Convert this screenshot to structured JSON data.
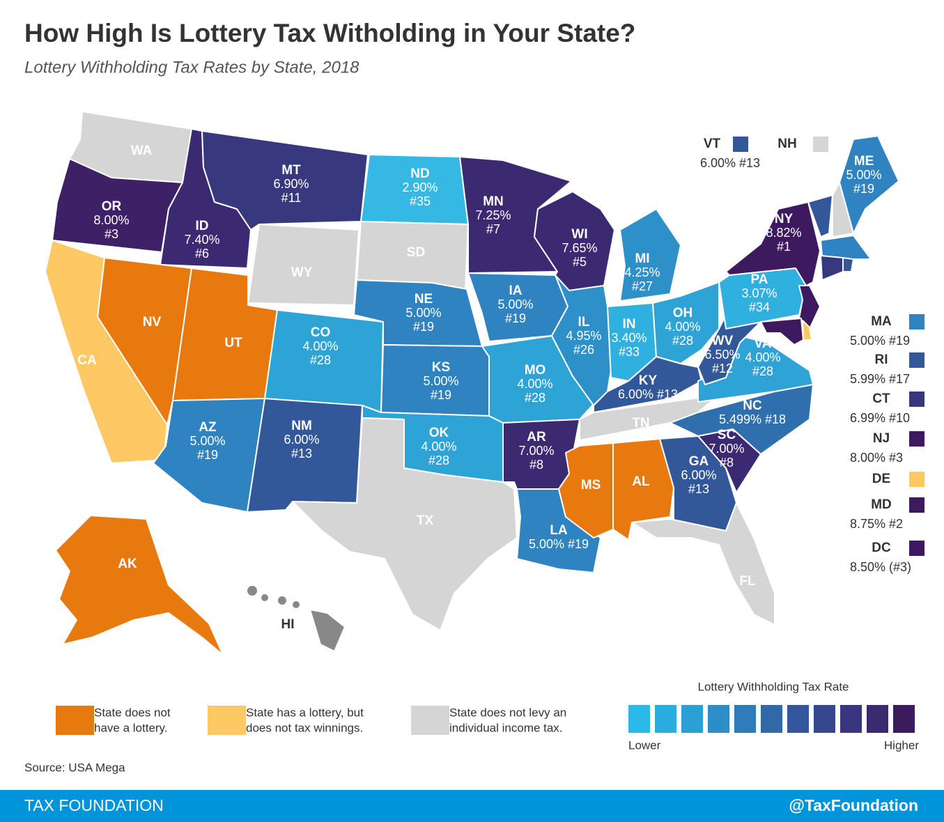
{
  "header": {
    "title": "How High Is Lottery Tax Witholding in Your State?",
    "subtitle": "Lottery Withholding Tax Rates by State, 2018"
  },
  "states": [
    {
      "abbr": "WA",
      "color": "#d5d5d5"
    },
    {
      "abbr": "OR",
      "lines": [
        "8.00%",
        "#3"
      ],
      "color": "#3d2066"
    },
    {
      "abbr": "ID",
      "lines": [
        "7.40%",
        "#6"
      ],
      "color": "#3b2a72"
    },
    {
      "abbr": "MT",
      "lines": [
        "6.90%",
        "#11"
      ],
      "color": "#38387f"
    },
    {
      "abbr": "WY",
      "color": "#d5d5d5"
    },
    {
      "abbr": "NV",
      "color": "#e8790f"
    },
    {
      "abbr": "CA",
      "color": "#fec965"
    },
    {
      "abbr": "UT",
      "color": "#e8790f"
    },
    {
      "abbr": "AZ",
      "lines": [
        "5.00%",
        "#19"
      ],
      "color": "#2e83c0"
    },
    {
      "abbr": "CO",
      "lines": [
        "4.00%",
        "#28"
      ],
      "color": "#2ea4d6"
    },
    {
      "abbr": "NM",
      "lines": [
        "6.00%",
        "#13"
      ],
      "color": "#33589a"
    },
    {
      "abbr": "ND",
      "lines": [
        "2.90%",
        "#35"
      ],
      "color": "#35b8e3"
    },
    {
      "abbr": "SD",
      "color": "#d5d5d5"
    },
    {
      "abbr": "NE",
      "lines": [
        "5.00%",
        "#19"
      ],
      "color": "#2e83c0"
    },
    {
      "abbr": "KS",
      "lines": [
        "5.00%",
        "#19"
      ],
      "color": "#2e83c0"
    },
    {
      "abbr": "OK",
      "lines": [
        "4.00%",
        "#28"
      ],
      "color": "#2ea4d6"
    },
    {
      "abbr": "TX",
      "color": "#d5d5d5"
    },
    {
      "abbr": "MN",
      "lines": [
        "7.25%",
        "#7"
      ],
      "color": "#3b2a72"
    },
    {
      "abbr": "IA",
      "lines": [
        "5.00%",
        "#19"
      ],
      "color": "#2e83c0"
    },
    {
      "abbr": "MO",
      "lines": [
        "4.00%",
        "#28"
      ],
      "color": "#2ea4d6"
    },
    {
      "abbr": "AR",
      "lines": [
        "7.00%",
        "#8"
      ],
      "color": "#3b2a72"
    },
    {
      "abbr": "LA",
      "lines": [
        "5.00% #19"
      ],
      "color": "#2e83c0"
    },
    {
      "abbr": "WI",
      "lines": [
        "7.65%",
        "#5"
      ],
      "color": "#3b2a72"
    },
    {
      "abbr": "IL",
      "lines": [
        "4.95%",
        "#26"
      ],
      "color": "#2e90c9"
    },
    {
      "abbr": "MI",
      "lines": [
        "4.25%",
        "#27"
      ],
      "color": "#2e90c9"
    },
    {
      "abbr": "IN",
      "lines": [
        "3.40%",
        "#33"
      ],
      "color": "#30b0df"
    },
    {
      "abbr": "OH",
      "lines": [
        "4.00%",
        "#28"
      ],
      "color": "#2ea4d6"
    },
    {
      "abbr": "KY",
      "lines": [
        "6.00% #13"
      ],
      "color": "#33589a"
    },
    {
      "abbr": "TN",
      "color": "#d5d5d5"
    },
    {
      "abbr": "MS",
      "color": "#e8790f"
    },
    {
      "abbr": "AL",
      "color": "#e8790f"
    },
    {
      "abbr": "GA",
      "lines": [
        "6.00%",
        "#13"
      ],
      "color": "#33589a"
    },
    {
      "abbr": "FL",
      "color": "#d5d5d5"
    },
    {
      "abbr": "SC",
      "lines": [
        "7.00%",
        "#8"
      ],
      "color": "#3b2a72"
    },
    {
      "abbr": "NC",
      "lines": [
        "5.499% #18"
      ],
      "color": "#2f6fad"
    },
    {
      "abbr": "VA",
      "lines": [
        "4.00%",
        "#28"
      ],
      "color": "#2ea4d6"
    },
    {
      "abbr": "WV",
      "lines": [
        "6.50%",
        "#12"
      ],
      "color": "#33589a"
    },
    {
      "abbr": "PA",
      "lines": [
        "3.07%",
        "#34"
      ],
      "color": "#30b0df"
    },
    {
      "abbr": "NY",
      "lines": [
        "8.82%",
        "#1"
      ],
      "color": "#3d1a5f"
    },
    {
      "abbr": "ME",
      "lines": [
        "5.00%",
        "#19"
      ],
      "color": "#2e83c0"
    },
    {
      "abbr": "AK",
      "color": "#e8790f"
    },
    {
      "abbr": "HI",
      "color": "#888888"
    },
    {
      "color": "#3d1a5f"
    },
    {
      "color": "#fec965"
    },
    {
      "color": "#3d1a5f"
    },
    {
      "color": "#33589a"
    },
    {
      "color": "#d5d5d5"
    },
    {
      "color": "#2e83c0"
    },
    {
      "color": "#38387f"
    },
    {
      "color": "#33589a"
    }
  ],
  "callouts": [
    {
      "abbr": "VT",
      "text": "6.00% #13",
      "color": "#33589a"
    },
    {
      "abbr": "NH",
      "color": "#d5d5d5"
    },
    {
      "abbr": "MA",
      "text": "5.00% #19",
      "color": "#2e83c0"
    },
    {
      "abbr": "RI",
      "text": "5.99% #17",
      "color": "#33589a"
    },
    {
      "abbr": "CT",
      "text": "6.99% #10",
      "color": "#38387f"
    },
    {
      "abbr": "NJ",
      "text": "8.00% #3",
      "color": "#3d1a5f"
    },
    {
      "abbr": "DE",
      "color": "#fec965"
    },
    {
      "abbr": "MD",
      "text": "8.75% #2",
      "color": "#3d1a5f"
    },
    {
      "abbr": "DC",
      "text": "8.50% (#3)",
      "color": "#3d1a5f"
    }
  ],
  "legend": {
    "categories": [
      {
        "lines": [
          "State does not",
          "have a lottery."
        ],
        "color": "#e8790f"
      },
      {
        "lines": [
          "State has a lottery, but",
          "does not tax winnings."
        ],
        "color": "#fec965"
      },
      {
        "lines": [
          "State does not levy an",
          "individual income tax."
        ],
        "color": "#d5d5d5"
      }
    ],
    "scale": {
      "title": "Lottery Withholding Tax Rate",
      "low": "Lower",
      "high": "Higher",
      "colors": [
        "#2ab9e8",
        "#2aaddf",
        "#2c9fd5",
        "#2d8dc7",
        "#2f7cba",
        "#3268a8",
        "#34579b",
        "#36478d",
        "#393680",
        "#3a2a6f",
        "#3c1a5e"
      ]
    }
  },
  "source": "Source: USA Mega",
  "footer": {
    "left": "TAX FOUNDATION",
    "right": "@TaxFoundation"
  }
}
